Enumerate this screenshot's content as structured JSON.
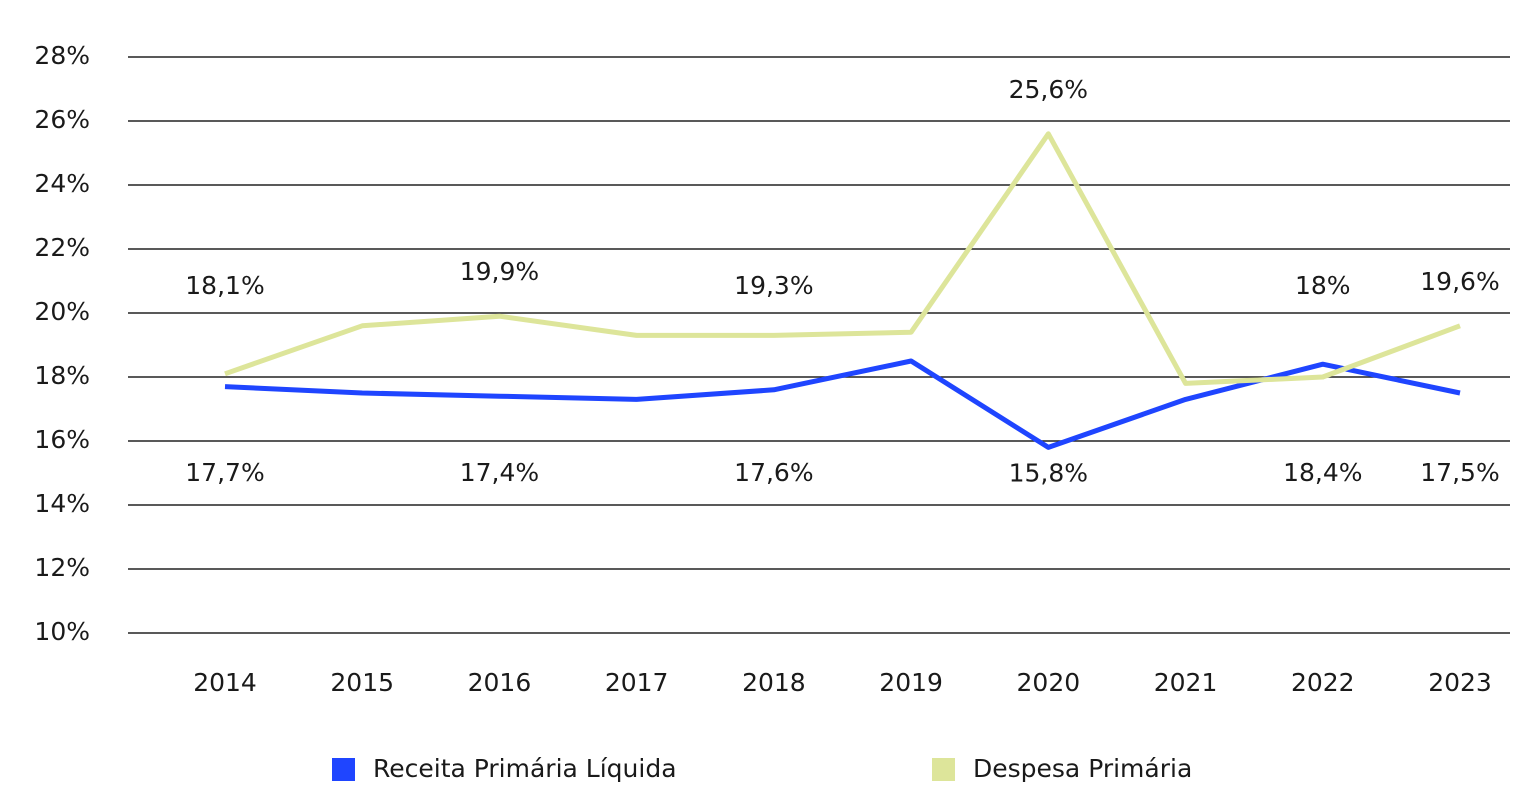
{
  "chart_data": {
    "type": "line",
    "categories": [
      "2014",
      "2015",
      "2016",
      "2017",
      "2018",
      "2019",
      "2020",
      "2021",
      "2022",
      "2023"
    ],
    "series": [
      {
        "name": "Receita Primária Líquida",
        "color": "#1f45ff",
        "values": [
          17.7,
          17.5,
          17.4,
          17.3,
          17.6,
          18.5,
          15.8,
          17.3,
          18.4,
          17.5
        ],
        "value_labels": [
          "17,7%",
          null,
          "17,4%",
          null,
          "17,6%",
          null,
          "15,8%",
          null,
          "18,4%",
          "17,5%"
        ]
      },
      {
        "name": "Despesa Primária",
        "color": "#dde59a",
        "values": [
          18.1,
          19.6,
          19.9,
          19.3,
          19.3,
          19.4,
          25.6,
          17.8,
          18,
          19.6
        ],
        "value_labels": [
          "18,1%",
          null,
          "19,9%",
          null,
          "19,3%",
          null,
          "25,6%",
          null,
          "18%",
          "19,6%"
        ]
      }
    ],
    "ylim": [
      10,
      28
    ],
    "yticks": [
      {
        "value": 10,
        "label": "10%"
      },
      {
        "value": 12,
        "label": "12%"
      },
      {
        "value": 14,
        "label": "14%"
      },
      {
        "value": 16,
        "label": "16%"
      },
      {
        "value": 18,
        "label": "18%"
      },
      {
        "value": 20,
        "label": "20%"
      },
      {
        "value": 22,
        "label": "22%"
      },
      {
        "value": 24,
        "label": "24%"
      },
      {
        "value": 26,
        "label": "26%"
      },
      {
        "value": 28,
        "label": "28%"
      }
    ],
    "grid": true,
    "legend": "bottom"
  }
}
